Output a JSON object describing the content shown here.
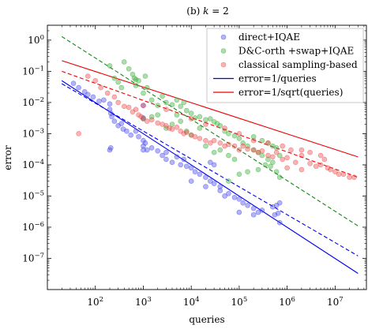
{
  "chart_data": {
    "type": "scatter",
    "title": "(b) k = 2",
    "title_parts": {
      "prefix": "(b) ",
      "var": "k",
      "suffix": " = 2"
    },
    "xlabel": "queries",
    "ylabel": "error",
    "xscale": "log",
    "yscale": "log",
    "xlim": [
      10,
      45000000
    ],
    "ylim": [
      1e-08,
      3.0
    ],
    "x_ticks": [
      {
        "value": 100,
        "base": "10",
        "exp": "2"
      },
      {
        "value": 1000,
        "base": "10",
        "exp": "3"
      },
      {
        "value": 10000,
        "base": "10",
        "exp": "4"
      },
      {
        "value": 100000,
        "base": "10",
        "exp": "5"
      },
      {
        "value": 1000000,
        "base": "10",
        "exp": "6"
      },
      {
        "value": 10000000,
        "base": "10",
        "exp": "7"
      }
    ],
    "y_ticks": [
      {
        "value": 1e-07,
        "base": "10",
        "exp": "−7"
      },
      {
        "value": 1e-06,
        "base": "10",
        "exp": "−6"
      },
      {
        "value": 1e-05,
        "base": "10",
        "exp": "−5"
      },
      {
        "value": 0.0001,
        "base": "10",
        "exp": "−4"
      },
      {
        "value": 0.001,
        "base": "10",
        "exp": "−3"
      },
      {
        "value": 0.01,
        "base": "10",
        "exp": "−2"
      },
      {
        "value": 0.1,
        "base": "10",
        "exp": "−1"
      },
      {
        "value": 1,
        "base": "10",
        "exp": "0"
      }
    ],
    "grid": false,
    "legend_position": "top-right",
    "series": [
      {
        "name": "direct+IQAE",
        "kind": "scatter",
        "color": "#4040ee",
        "points": [
          [
            35,
            0.041
          ],
          [
            45,
            0.03
          ],
          [
            60,
            0.022
          ],
          [
            70,
            0.018
          ],
          [
            90,
            0.015
          ],
          [
            120,
            0.011
          ],
          [
            150,
            0.012
          ],
          [
            200,
            0.009
          ],
          [
            200,
            0.006
          ],
          [
            210,
            0.0045
          ],
          [
            220,
            0.0035
          ],
          [
            200,
            0.0003
          ],
          [
            210,
            0.00035
          ],
          [
            250,
            0.0025
          ],
          [
            300,
            0.0018
          ],
          [
            350,
            0.0021
          ],
          [
            380,
            0.0014
          ],
          [
            450,
            0.0012
          ],
          [
            550,
            0.0009
          ],
          [
            700,
            0.0012
          ],
          [
            800,
            0.0008
          ],
          [
            1000,
            0.0006
          ],
          [
            1000,
            0.008
          ],
          [
            1000,
            0.0032
          ],
          [
            1000,
            0.0004
          ],
          [
            1100,
            0.0005
          ],
          [
            1200,
            0.0003
          ],
          [
            1000,
            0.0003
          ],
          [
            1500,
            0.00035
          ],
          [
            2000,
            0.00028
          ],
          [
            2500,
            0.0002
          ],
          [
            3000,
            0.00015
          ],
          [
            4000,
            0.00012
          ],
          [
            5000,
            0.00018
          ],
          [
            6000,
            0.0001
          ],
          [
            7000,
            0.00015
          ],
          [
            8000,
            9e-05
          ],
          [
            10000,
            8e-05
          ],
          [
            12000,
            6e-05
          ],
          [
            15000,
            5e-05
          ],
          [
            20000,
            4e-05
          ],
          [
            25000,
            3e-05
          ],
          [
            30000,
            2.5e-05
          ],
          [
            40000,
            2e-05
          ],
          [
            50000,
            1e-05
          ],
          [
            60000,
            1.2e-05
          ],
          [
            80000,
            9e-06
          ],
          [
            100000,
            8e-06
          ],
          [
            120000,
            6e-06
          ],
          [
            150000,
            5e-06
          ],
          [
            200000,
            4e-06
          ],
          [
            250000,
            3e-06
          ],
          [
            300000,
            3.5e-06
          ],
          [
            500000,
            4.5e-06
          ],
          [
            600000,
            5e-06
          ],
          [
            700000,
            6e-06
          ],
          [
            550000,
            2.5e-06
          ],
          [
            650000,
            2.8e-06
          ],
          [
            700000,
            1.4e-06
          ],
          [
            100000,
            3e-06
          ],
          [
            200000,
            2.5e-06
          ],
          [
            3000,
            0.00025
          ],
          [
            25000,
            0.00012
          ],
          [
            30000,
            0.0001
          ],
          [
            20000,
            2e-05
          ],
          [
            10000,
            3e-05
          ],
          [
            40000,
            1.5e-05
          ]
        ]
      },
      {
        "name": "D&C-orth +swap+IQAE",
        "kind": "scatter",
        "color": "#33aa33",
        "points": [
          [
            200,
            0.15
          ],
          [
            250,
            0.06
          ],
          [
            300,
            0.045
          ],
          [
            350,
            0.03
          ],
          [
            400,
            0.2
          ],
          [
            500,
            0.12
          ],
          [
            600,
            0.08
          ],
          [
            650,
            0.06
          ],
          [
            700,
            0.055
          ],
          [
            700,
            0.035
          ],
          [
            800,
            0.05
          ],
          [
            1000,
            0.02
          ],
          [
            1000,
            0.003
          ],
          [
            1100,
            0.07
          ],
          [
            1200,
            0.03
          ],
          [
            1500,
            0.012
          ],
          [
            2000,
            0.008
          ],
          [
            2500,
            0.016
          ],
          [
            3000,
            0.01
          ],
          [
            4000,
            0.0085
          ],
          [
            5000,
            0.012
          ],
          [
            6000,
            0.0075
          ],
          [
            7000,
            0.01
          ],
          [
            8000,
            0.0055
          ],
          [
            10000,
            0.0045
          ],
          [
            12000,
            0.0032
          ],
          [
            15000,
            0.0035
          ],
          [
            20000,
            0.0028
          ],
          [
            25000,
            0.003
          ],
          [
            30000,
            0.0024
          ],
          [
            35000,
            0.0021
          ],
          [
            40000,
            0.0018
          ],
          [
            50000,
            0.0012
          ],
          [
            60000,
            0.001
          ],
          [
            80000,
            0.00085
          ],
          [
            100000,
            0.0007
          ],
          [
            120000,
            0.0005
          ],
          [
            150000,
            0.0004
          ],
          [
            200000,
            0.0003
          ],
          [
            250000,
            0.00025
          ],
          [
            300000,
            0.0002
          ],
          [
            400000,
            0.00015
          ],
          [
            500000,
            0.00012
          ],
          [
            600000,
            0.00035
          ],
          [
            700000,
            0.0002
          ],
          [
            40000,
            0.0003
          ],
          [
            30000,
            0.00025
          ],
          [
            20000,
            0.0004
          ],
          [
            60000,
            0.0002
          ],
          [
            80000,
            0.00015
          ],
          [
            15000,
            0.0015
          ],
          [
            10000,
            0.0009
          ],
          [
            6000,
            0.0025
          ],
          [
            3000,
            0.0015
          ],
          [
            2000,
            0.004
          ],
          [
            1500,
            0.0035
          ],
          [
            8000,
            0.0012
          ],
          [
            5000,
            0.004
          ],
          [
            4000,
            0.002
          ],
          [
            200000,
            0.0008
          ],
          [
            300000,
            0.0006
          ],
          [
            400000,
            0.0005
          ],
          [
            500000,
            0.0004
          ],
          [
            350000,
            0.0001
          ],
          [
            450000,
            9e-05
          ],
          [
            250000,
            7e-05
          ],
          [
            100000,
            5e-05
          ],
          [
            150000,
            6e-05
          ],
          [
            60000,
            3e-05
          ],
          [
            600000,
            6e-05
          ],
          [
            700000,
            4e-05
          ]
        ]
      },
      {
        "name": "classical sampling-based",
        "kind": "scatter",
        "color": "#ee4444",
        "points": [
          [
            45,
            0.001
          ],
          [
            70,
            0.07
          ],
          [
            100,
            0.05
          ],
          [
            130,
            0.03
          ],
          [
            180,
            0.02
          ],
          [
            250,
            0.015
          ],
          [
            300,
            0.01
          ],
          [
            400,
            0.0075
          ],
          [
            500,
            0.007
          ],
          [
            600,
            0.005
          ],
          [
            700,
            0.006
          ],
          [
            800,
            0.004
          ],
          [
            900,
            0.0035
          ],
          [
            1000,
            0.003
          ],
          [
            1200,
            0.0025
          ],
          [
            1500,
            0.0028
          ],
          [
            2000,
            0.0022
          ],
          [
            2500,
            0.002
          ],
          [
            3000,
            0.0018
          ],
          [
            3500,
            0.0015
          ],
          [
            4000,
            0.0014
          ],
          [
            5000,
            0.0016
          ],
          [
            6000,
            0.0012
          ],
          [
            7000,
            0.001
          ],
          [
            8000,
            0.0011
          ],
          [
            10000,
            0.0009
          ],
          [
            12000,
            0.0008
          ],
          [
            15000,
            0.0007
          ],
          [
            20000,
            0.0006
          ],
          [
            25000,
            0.0005
          ],
          [
            30000,
            0.0006
          ],
          [
            40000,
            0.0005
          ],
          [
            50000,
            0.0004
          ],
          [
            60000,
            0.00045
          ],
          [
            80000,
            0.0004
          ],
          [
            100000,
            0.0003
          ],
          [
            120000,
            0.0004
          ],
          [
            150000,
            0.00032
          ],
          [
            200000,
            0.0003
          ],
          [
            250000,
            0.00025
          ],
          [
            300000,
            0.00028
          ],
          [
            400000,
            0.0002
          ],
          [
            500000,
            0.00018
          ],
          [
            600000,
            0.00025
          ],
          [
            800000,
            0.00015
          ],
          [
            1000000,
            0.00017
          ],
          [
            1200000,
            0.0003
          ],
          [
            1500000,
            0.00012
          ],
          [
            2000000,
            0.0002
          ],
          [
            3000000,
            0.00011
          ],
          [
            4000000,
            9e-05
          ],
          [
            5000000,
            0.0001
          ],
          [
            6000000,
            0.00015
          ],
          [
            7000000,
            8e-05
          ],
          [
            8000000,
            7e-05
          ],
          [
            10000000,
            6e-05
          ],
          [
            12000000,
            5e-05
          ],
          [
            15000000,
            5e-05
          ],
          [
            20000000,
            4e-05
          ],
          [
            25000000,
            4e-05
          ],
          [
            1000,
            0.008
          ],
          [
            3000,
            0.006
          ],
          [
            10000,
            0.003
          ],
          [
            20000,
            0.002
          ],
          [
            50000,
            0.0015
          ],
          [
            100000,
            0.001
          ],
          [
            200000,
            0.0006
          ],
          [
            400000,
            0.0005
          ],
          [
            800000,
            0.0004
          ],
          [
            2000000,
            0.0003
          ],
          [
            3000000,
            0.00025
          ],
          [
            5000000,
            0.0002
          ],
          [
            1000000,
            8e-05
          ],
          [
            2000000,
            7e-05
          ]
        ]
      },
      {
        "name": "error=1/queries",
        "kind": "line",
        "color": "#0000ee",
        "dash": false,
        "points": [
          [
            20,
            0.05
          ],
          [
            30000000,
            3.3e-08
          ]
        ]
      },
      {
        "name": "error=1/sqrt(queries)",
        "kind": "line",
        "color": "#ee0000",
        "dash": false,
        "points": [
          [
            20,
            0.22
          ],
          [
            30000000,
            0.00018
          ]
        ]
      },
      {
        "name": "direct+IQAE fit",
        "kind": "line",
        "color": "#0000ee",
        "dash": true,
        "points": [
          [
            20,
            0.04
          ],
          [
            30000000,
            1.2e-07
          ]
        ]
      },
      {
        "name": "D&C-orth +swap+IQAE fit",
        "kind": "line",
        "color": "#118811",
        "dash": true,
        "points": [
          [
            20,
            1.3
          ],
          [
            30000000,
            1.1e-06
          ]
        ]
      },
      {
        "name": "classical sampling-based fit",
        "kind": "line",
        "color": "#ee0000",
        "dash": true,
        "points": [
          [
            20,
            0.1
          ],
          [
            30000000,
            4e-05
          ]
        ]
      }
    ],
    "legend": [
      {
        "label": "direct+IQAE",
        "kind": "marker",
        "color": "#4040ee"
      },
      {
        "label": "D&C-orth +swap+IQAE",
        "kind": "marker",
        "color": "#33aa33"
      },
      {
        "label": "classical sampling-based",
        "kind": "marker",
        "color": "#ee4444"
      },
      {
        "label": "error=1/queries",
        "kind": "line",
        "color": "#0000ee"
      },
      {
        "label": "error=1/sqrt(queries)",
        "kind": "line",
        "color": "#ee0000"
      }
    ]
  }
}
